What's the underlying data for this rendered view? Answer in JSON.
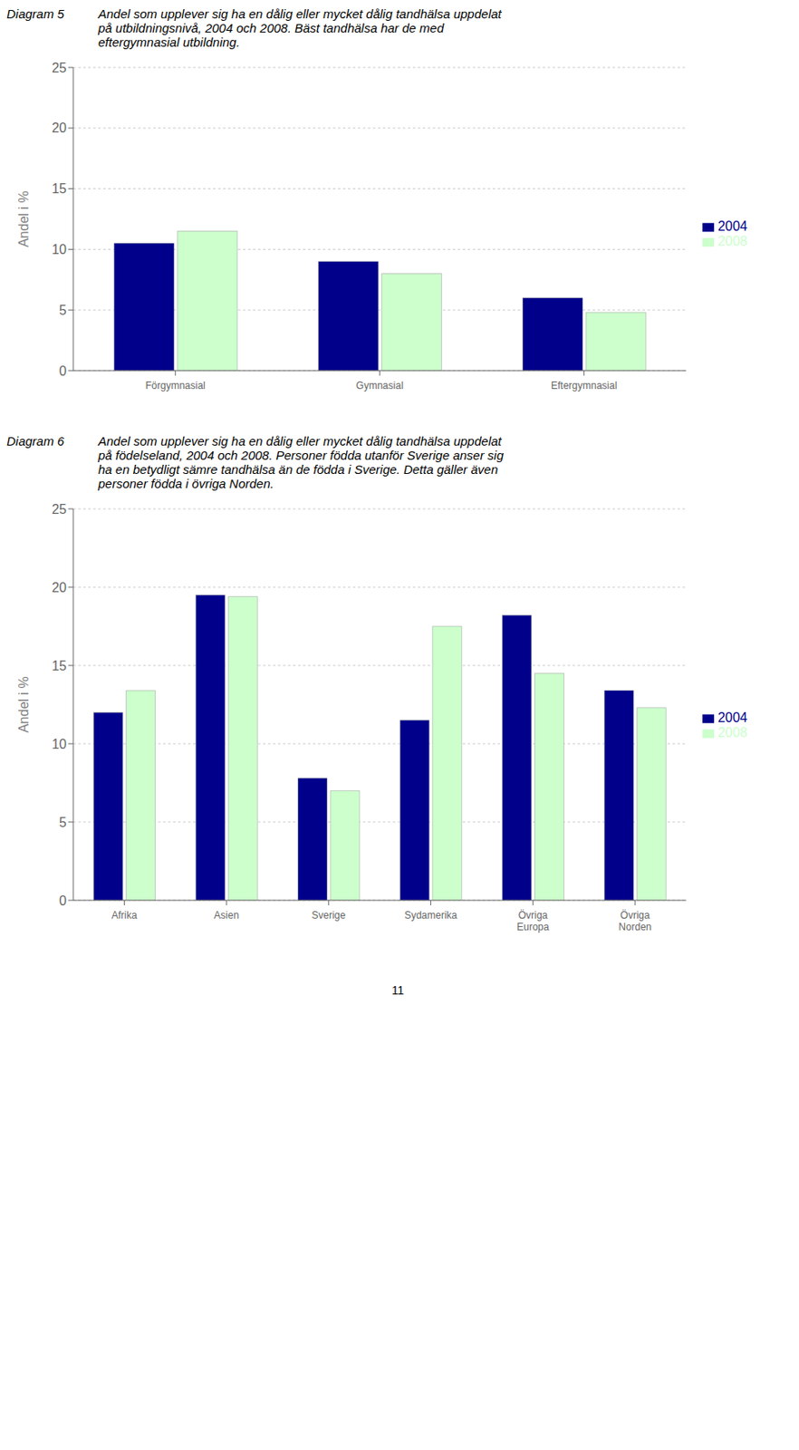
{
  "chart_data": [
    {
      "type": "bar",
      "title": "Diagram 5",
      "subtitle": "Andel som upplever sig ha en dålig eller mycket dålig tandhälsa uppdelat\npå utbildningsnivå, 2004 och 2008. Bäst tandhälsa har de med\neftergymnasial utbildning.",
      "categories": [
        "Förgymnasial",
        "Gymnasial",
        "Eftergymnasial"
      ],
      "series": [
        {
          "name": "2004",
          "color": "#00008B",
          "values": [
            10.5,
            9.0,
            6.0
          ]
        },
        {
          "name": "2008",
          "color": "#CCFFCC",
          "values": [
            11.5,
            8.0,
            4.8
          ]
        }
      ],
      "ylabel": "Andel i %",
      "ylim": [
        0,
        25
      ],
      "yticks": [
        0,
        5,
        10,
        15,
        20,
        25
      ],
      "grid": true,
      "legend": "right"
    },
    {
      "type": "bar",
      "title": "Diagram 6",
      "subtitle": "Andel som upplever sig ha en dålig eller mycket dålig tandhälsa uppdelat\npå födelseland, 2004 och 2008. Personer födda utanför Sverige anser sig\nha en betydligt sämre tandhälsa än de födda i Sverige. Detta gäller även\npersoner födda i övriga Norden.",
      "categories": [
        "Afrika",
        "Asien",
        "Sverige",
        "Sydamerika",
        "Övriga\nEuropa",
        "Övriga\nNorden"
      ],
      "series": [
        {
          "name": "2004",
          "color": "#00008B",
          "values": [
            12.0,
            19.5,
            7.8,
            11.5,
            18.2,
            13.4
          ]
        },
        {
          "name": "2008",
          "color": "#CCFFCC",
          "values": [
            13.4,
            19.4,
            7.0,
            17.5,
            14.5,
            12.3
          ]
        }
      ],
      "ylabel": "Andel i %",
      "ylim": [
        0,
        25
      ],
      "yticks": [
        0,
        5,
        10,
        15,
        20,
        25
      ],
      "grid": true,
      "legend": "right",
      "annotations": [
        "11"
      ]
    }
  ]
}
